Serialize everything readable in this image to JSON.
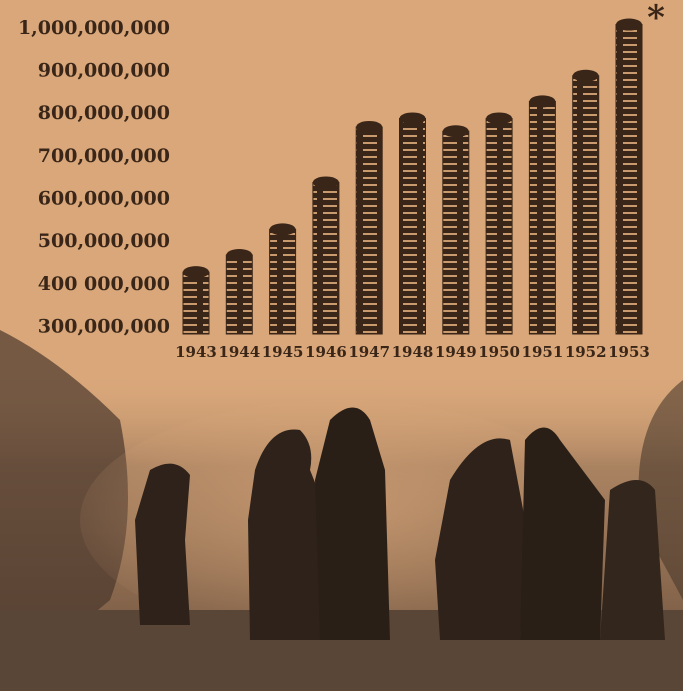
{
  "chart_data": {
    "type": "bar",
    "categories": [
      "1943",
      "1944",
      "1945",
      "1946",
      "1947",
      "1948",
      "1949",
      "1950",
      "1951",
      "1952",
      "1953"
    ],
    "values": [
      430000000,
      470000000,
      530000000,
      640000000,
      770000000,
      790000000,
      760000000,
      790000000,
      830000000,
      890000000,
      1010000000
    ],
    "color": "#3a2618",
    "ylim": [
      285000000,
      1030000000
    ],
    "yticks": [
      {
        "value": 300000000,
        "label": "300,000,000"
      },
      {
        "value": 400000000,
        "label": "400 000,000"
      },
      {
        "value": 500000000,
        "label": "500,000,000"
      },
      {
        "value": 600000000,
        "label": "600,000,000"
      },
      {
        "value": 700000000,
        "label": "700,000,000"
      },
      {
        "value": 800000000,
        "label": "800,000,000"
      },
      {
        "value": 900000000,
        "label": "900,000,000"
      },
      {
        "value": 1000000000,
        "label": "1,000,000,000"
      }
    ],
    "annotation": "*"
  }
}
